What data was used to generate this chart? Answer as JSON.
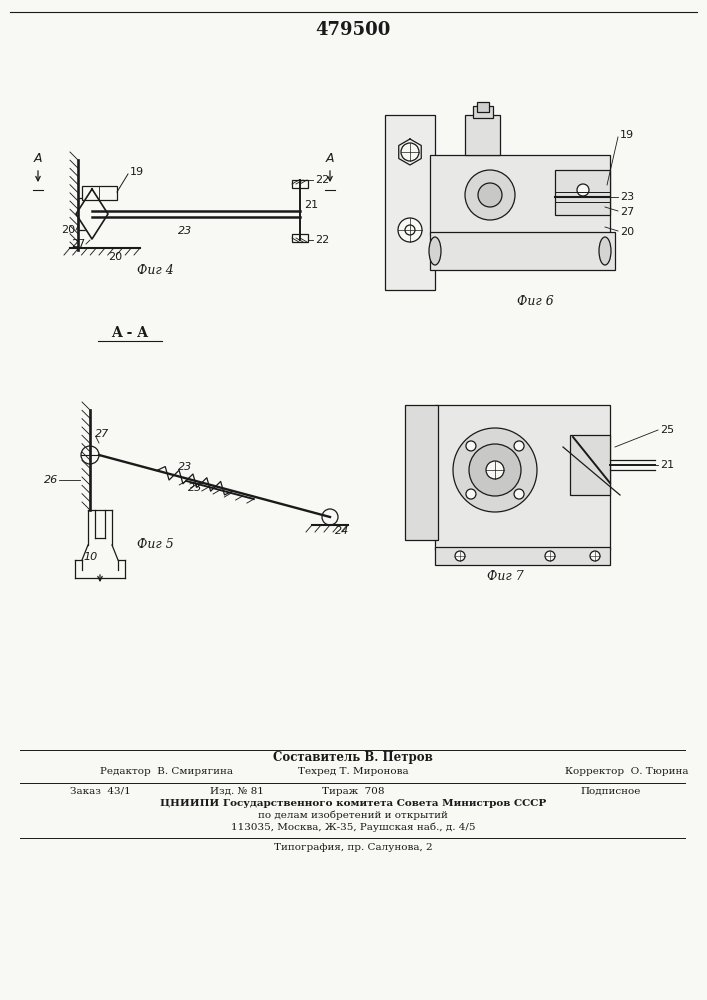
{
  "title": "479500",
  "bg_color": "#f8f8f4",
  "line_color": "#1a1a1a",
  "fig4_label": "Фиг 4",
  "fig5_label": "Фиг 5",
  "fig6_label": "Фиг 6",
  "fig7_label": "Фиг 7",
  "section_label": "A - A",
  "footer_lines": [
    "Составитель В. Петров",
    "Редактор  В. Смирягина",
    "Техред Т. Миронова",
    "Корректор  О. Тюрина",
    "Заказ  43/1",
    "Изд. № 81",
    "Тираж  708",
    "Подписное",
    "ЦНИИПИ Государственного комитета Совета Министров СССР",
    "по делам изобретений и открытий",
    "113035, Москва, Ж-35, Раушская наб., д. 4/5",
    "Типография, пр. Салунова, 2"
  ]
}
